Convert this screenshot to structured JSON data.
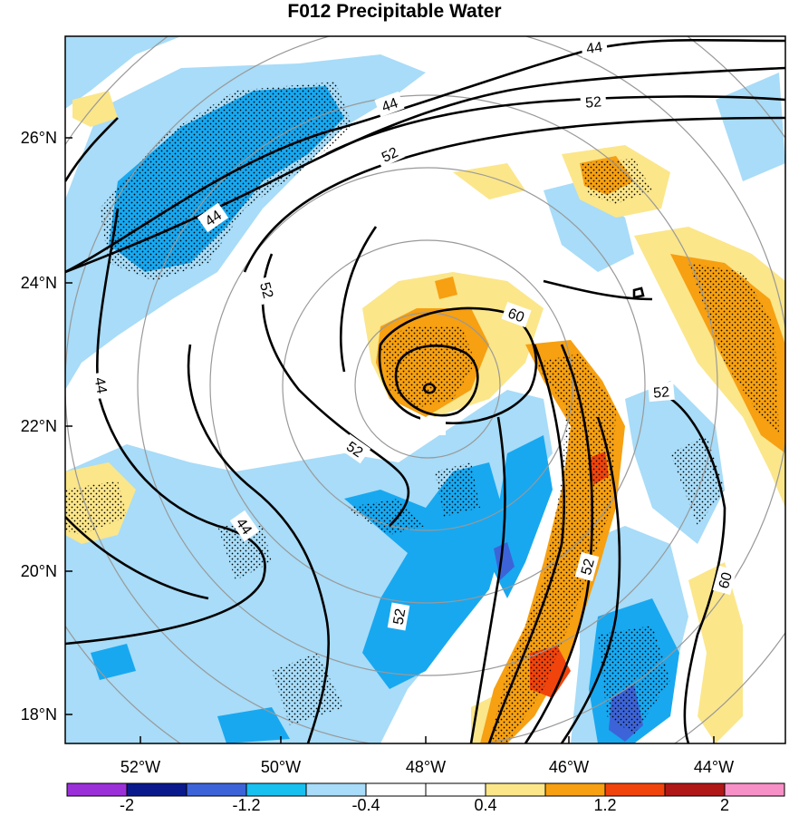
{
  "title": "F012 Precipitable Water",
  "map": {
    "lat_labels": [
      "26°N",
      "24°N",
      "22°N",
      "20°N",
      "18°N"
    ],
    "lon_labels": [
      "52°W",
      "50°W",
      "48°W",
      "46°W",
      "44°W"
    ],
    "contour_labels": [
      "44",
      "44",
      "44",
      "44",
      "44",
      "52",
      "52",
      "52",
      "52",
      "52",
      "52",
      "52",
      "60",
      "60"
    ],
    "contour_levels": [
      44,
      52,
      60
    ],
    "stippling": "dotted regions indicate significance",
    "range_rings": "concentric gray circles centered on the storm"
  },
  "colorbar": {
    "labels": [
      "-2",
      "-1.2",
      "-0.4",
      "0.4",
      "1.2",
      "2"
    ],
    "colors": [
      "#9b30d9",
      "#0a1a8c",
      "#3c64d8",
      "#18c0f0",
      "#a8dcf8",
      "#ffffff",
      "#ffffff",
      "#fbe68a",
      "#f6a012",
      "#f0440c",
      "#b01818",
      "#f890c8"
    ]
  }
}
